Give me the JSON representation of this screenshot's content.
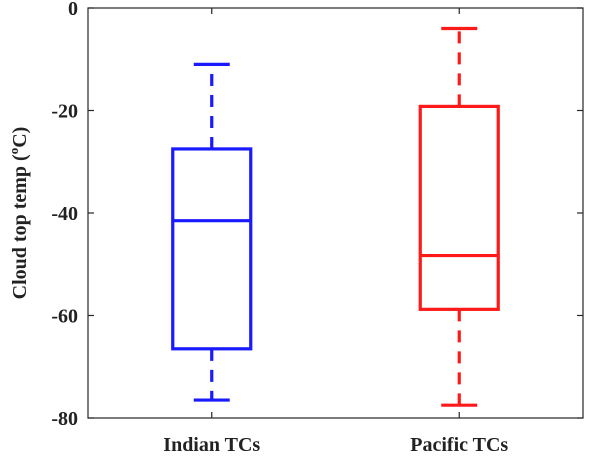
{
  "chart_data": {
    "type": "box",
    "categories": [
      "Indian TCs",
      "Pacific TCs"
    ],
    "ylabel": {
      "text": "Cloud top temp (",
      "sup": "o",
      "unit": "C)"
    },
    "ylim": [
      -80,
      0
    ],
    "yticks": [
      0,
      -20,
      -40,
      -60,
      -80
    ],
    "grid": false,
    "series": [
      {
        "category": "Indian TCs",
        "color": "#1a1aff",
        "min": -76.5,
        "q1": -66.5,
        "median": -41.5,
        "q3": -27.5,
        "max": -11
      },
      {
        "category": "Pacific TCs",
        "color": "#ff1a1a",
        "min": -77.5,
        "q1": -58.8,
        "median": -48.3,
        "q3": -19.2,
        "max": -4
      }
    ]
  }
}
